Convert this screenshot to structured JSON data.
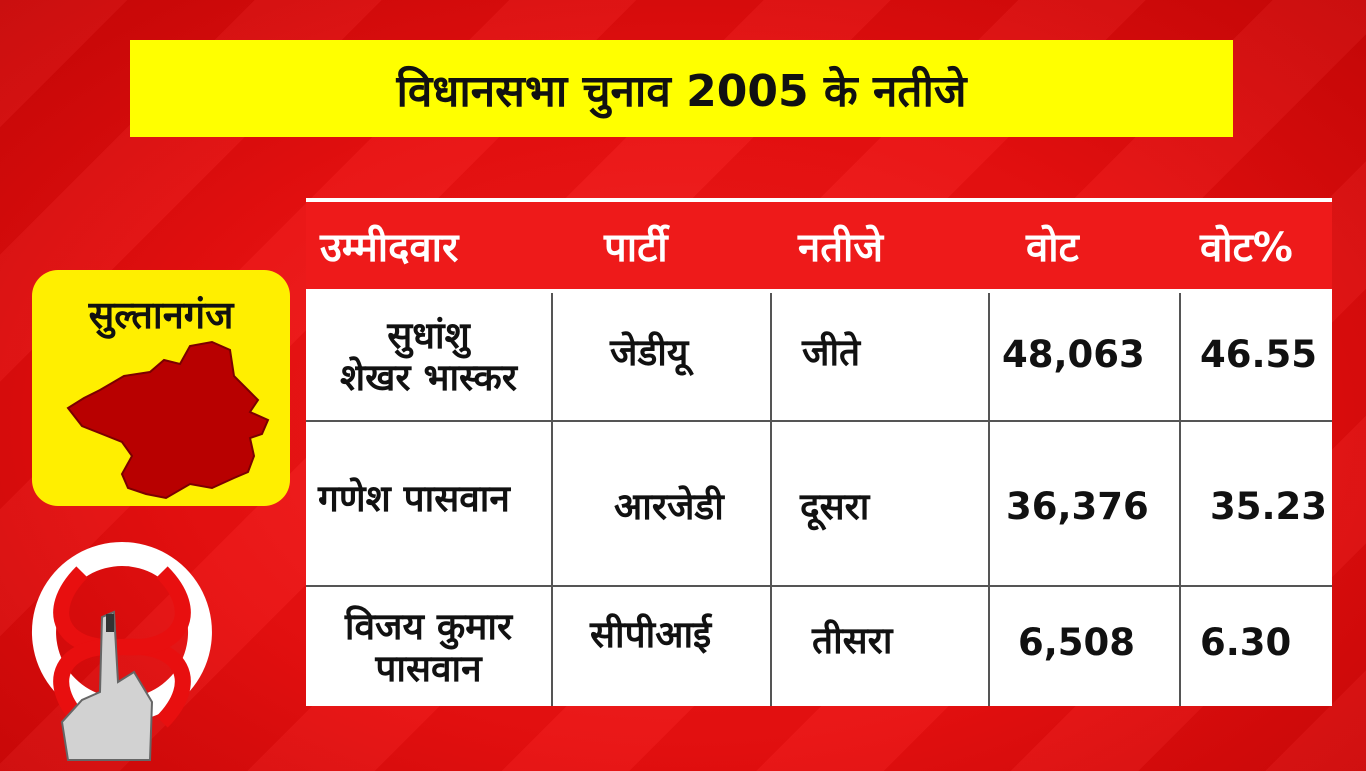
{
  "title": "विधानसभा चुनाव 2005 के नतीजे",
  "constituency": {
    "name": "सुल्तानगंज",
    "map_color": "#b80000",
    "card_color": "#ffef00"
  },
  "table": {
    "headers": {
      "candidate": "उम्मीदवार",
      "party": "पार्टी",
      "result": "नतीजे",
      "votes": "वोट",
      "vote_pct": "वोट%"
    },
    "rows": [
      {
        "candidate_l1": "सुधांशु",
        "candidate_l2": "शेखर भास्कर",
        "party": "जेडीयू",
        "result": "जीते",
        "votes": "48,063",
        "vote_pct": "46.55"
      },
      {
        "candidate_l1": "गणेश पासवान",
        "candidate_l2": "",
        "party": "आरजेडी",
        "result": "दूसरा",
        "votes": "36,376",
        "vote_pct": "35.23"
      },
      {
        "candidate_l1": "विजय कुमार",
        "candidate_l2": "पासवान",
        "party": "सीपीआई",
        "result": "तीसरा",
        "votes": "6,508",
        "vote_pct": "6.30"
      }
    ]
  },
  "colors": {
    "background": "#e80f0f",
    "title_banner": "#ffff00",
    "table_header": "#ee1a1a"
  },
  "icons": [
    "constituency-map-icon",
    "voting-finger-symbol-icon"
  ]
}
